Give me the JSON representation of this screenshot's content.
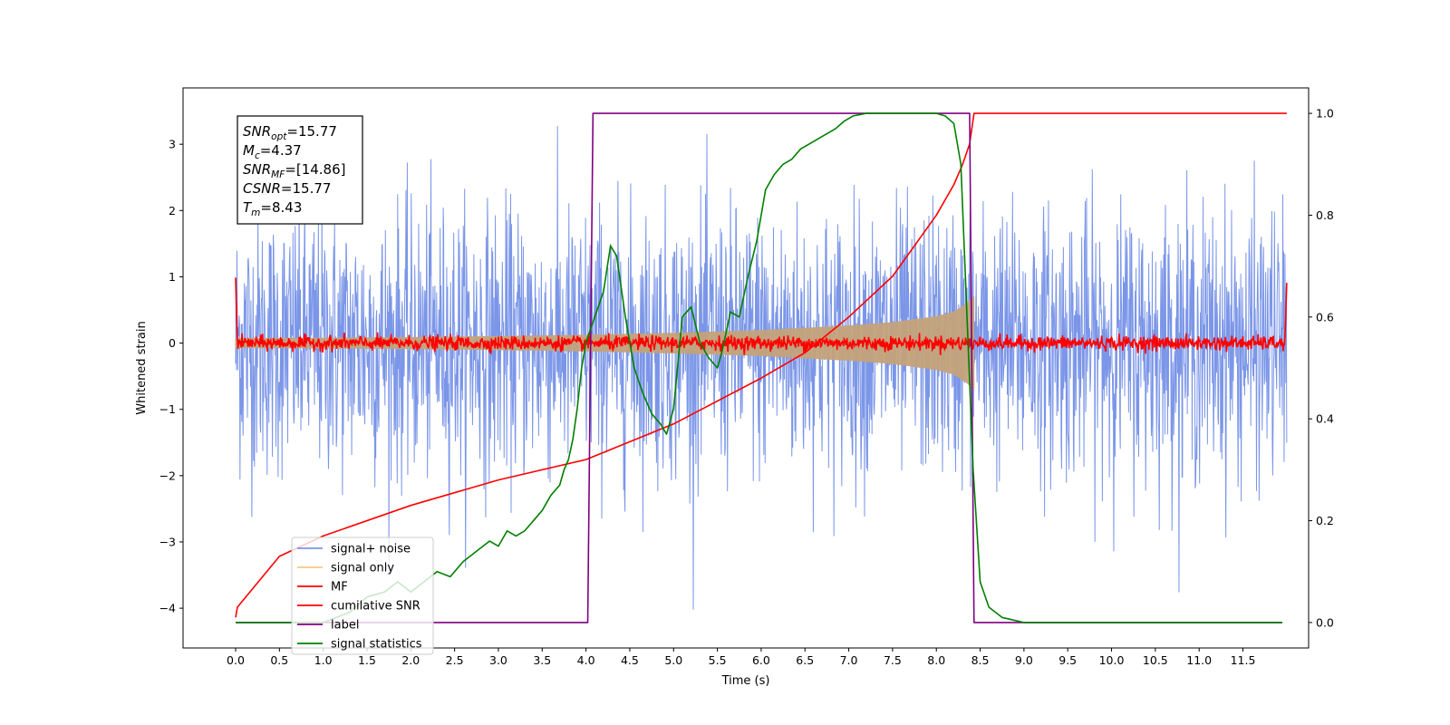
{
  "chart_data": {
    "type": "line",
    "xlabel": "Time (s)",
    "ylabel": "Whitened strain",
    "xlim": [
      -0.6,
      12.25
    ],
    "ylim_left": [
      -4.6,
      3.85
    ],
    "ylim_right": [
      -0.05,
      1.05
    ],
    "x_ticks": [
      0.0,
      0.5,
      1.0,
      1.5,
      2.0,
      2.5,
      3.0,
      3.5,
      4.0,
      4.5,
      5.0,
      5.5,
      6.0,
      6.5,
      7.0,
      7.5,
      8.0,
      8.5,
      9.0,
      9.5,
      10.0,
      10.5,
      11.0,
      11.5
    ],
    "x_tick_labels": [
      "0.0",
      "0.5",
      "1.0",
      "1.5",
      "2.0",
      "2.5",
      "3.0",
      "3.5",
      "4.0",
      "4.5",
      "5.0",
      "5.5",
      "6.0",
      "6.5",
      "7.0",
      "7.5",
      "8.0",
      "8.5",
      "9.0",
      "9.5",
      "10.0",
      "10.5",
      "11.0",
      "11.5"
    ],
    "y_left_ticks": [
      -4,
      -3,
      -2,
      -1,
      0,
      1,
      2,
      3
    ],
    "y_left_tick_labels": [
      "−4",
      "−3",
      "−2",
      "−1",
      "0",
      "1",
      "2",
      "3"
    ],
    "y_right_ticks": [
      0.0,
      0.2,
      0.4,
      0.6,
      0.8,
      1.0
    ],
    "y_right_tick_labels": [
      "0.0",
      "0.2",
      "0.4",
      "0.6",
      "0.8",
      "1.0"
    ],
    "annotation": [
      {
        "symbol": "SNR",
        "sub": "opt",
        "value": "=15.77"
      },
      {
        "symbol": "M",
        "sub": "c",
        "value": "=4.37"
      },
      {
        "symbol": "SNR",
        "sub": "MF",
        "value": "=[14.86]"
      },
      {
        "symbol": "CSNR",
        "sub": "",
        "value": "=15.77"
      },
      {
        "symbol": "T",
        "sub": "m",
        "value": "=8.43"
      }
    ],
    "legend": [
      "signal+ noise",
      "signal only",
      "MF",
      "cumilative SNR",
      "label",
      "signal statistics"
    ],
    "legend_position": "lower-left",
    "colors": {
      "signal_noise": "#7b96e8",
      "signal_only": "#c4a27a",
      "mf": "#ff0000",
      "cumulative": "#ff0000",
      "label": "#800080",
      "statistics": "#008000",
      "legend_signal_only": "#f5c98c"
    },
    "series": [
      {
        "name": "signal+ noise",
        "axis": "left",
        "x_range": [
          0.0,
          12.0
        ],
        "typical_envelope": [
          -2.2,
          2.2
        ],
        "extreme_range": [
          -4.1,
          3.45
        ]
      },
      {
        "name": "signal only",
        "axis": "left",
        "x_range": [
          0.0,
          8.43
        ],
        "envelope_x": [
          0.0,
          1.0,
          2.0,
          3.0,
          4.0,
          5.0,
          6.0,
          7.0,
          7.5,
          8.0,
          8.2,
          8.35,
          8.43
        ],
        "envelope_amp": [
          0.07,
          0.075,
          0.085,
          0.1,
          0.12,
          0.15,
          0.19,
          0.26,
          0.31,
          0.4,
          0.47,
          0.6,
          0.7
        ]
      },
      {
        "name": "MF",
        "axis": "left",
        "x_range": [
          0.0,
          12.0
        ],
        "noise_amplitude": 0.12,
        "edge_spike": 1.0
      },
      {
        "name": "cumilative SNR",
        "axis": "right",
        "x": [
          0.0,
          0.02,
          0.5,
          1.0,
          2.0,
          3.0,
          4.0,
          5.0,
          6.0,
          6.5,
          7.0,
          7.5,
          8.0,
          8.2,
          8.3,
          8.38,
          8.43,
          8.5,
          12.0
        ],
        "y": [
          0.01,
          0.03,
          0.13,
          0.17,
          0.23,
          0.28,
          0.32,
          0.39,
          0.48,
          0.53,
          0.6,
          0.68,
          0.8,
          0.86,
          0.9,
          0.94,
          1.0,
          1.0,
          1.0
        ]
      },
      {
        "name": "label",
        "axis": "right",
        "x": [
          0.0,
          4.02,
          4.08,
          8.38,
          8.43,
          11.95
        ],
        "y": [
          0.0,
          0.0,
          1.0,
          1.0,
          0.0,
          0.0
        ]
      },
      {
        "name": "signal statistics",
        "axis": "right",
        "x": [
          0.0,
          0.5,
          1.0,
          1.3,
          1.5,
          1.7,
          1.85,
          2.0,
          2.15,
          2.3,
          2.45,
          2.6,
          2.75,
          2.9,
          3.0,
          3.1,
          3.2,
          3.3,
          3.4,
          3.5,
          3.6,
          3.7,
          3.75,
          3.8,
          3.85,
          3.9,
          3.95,
          4.0,
          4.1,
          4.2,
          4.28,
          4.35,
          4.45,
          4.55,
          4.65,
          4.75,
          4.85,
          4.92,
          5.0,
          5.1,
          5.2,
          5.3,
          5.4,
          5.5,
          5.55,
          5.65,
          5.75,
          5.85,
          5.95,
          6.05,
          6.15,
          6.25,
          6.35,
          6.45,
          6.55,
          6.65,
          6.75,
          6.85,
          6.95,
          7.05,
          7.2,
          7.5,
          7.8,
          8.0,
          8.1,
          8.2,
          8.28,
          8.35,
          8.42,
          8.5,
          8.6,
          8.75,
          9.0,
          9.5,
          10.0,
          11.0,
          11.95
        ],
        "y": [
          0.0,
          0.0,
          0.0,
          0.02,
          0.05,
          0.06,
          0.08,
          0.06,
          0.08,
          0.1,
          0.09,
          0.12,
          0.14,
          0.16,
          0.15,
          0.18,
          0.17,
          0.18,
          0.2,
          0.22,
          0.25,
          0.27,
          0.3,
          0.32,
          0.36,
          0.42,
          0.5,
          0.55,
          0.6,
          0.65,
          0.74,
          0.72,
          0.6,
          0.5,
          0.45,
          0.41,
          0.39,
          0.37,
          0.42,
          0.6,
          0.62,
          0.55,
          0.52,
          0.5,
          0.53,
          0.61,
          0.6,
          0.68,
          0.75,
          0.85,
          0.88,
          0.9,
          0.91,
          0.93,
          0.94,
          0.95,
          0.96,
          0.97,
          0.985,
          0.995,
          1.0,
          1.0,
          1.0,
          1.0,
          0.995,
          0.98,
          0.9,
          0.6,
          0.3,
          0.08,
          0.03,
          0.01,
          0.0,
          0.0,
          0.0,
          0.0,
          0.0
        ]
      }
    ]
  }
}
